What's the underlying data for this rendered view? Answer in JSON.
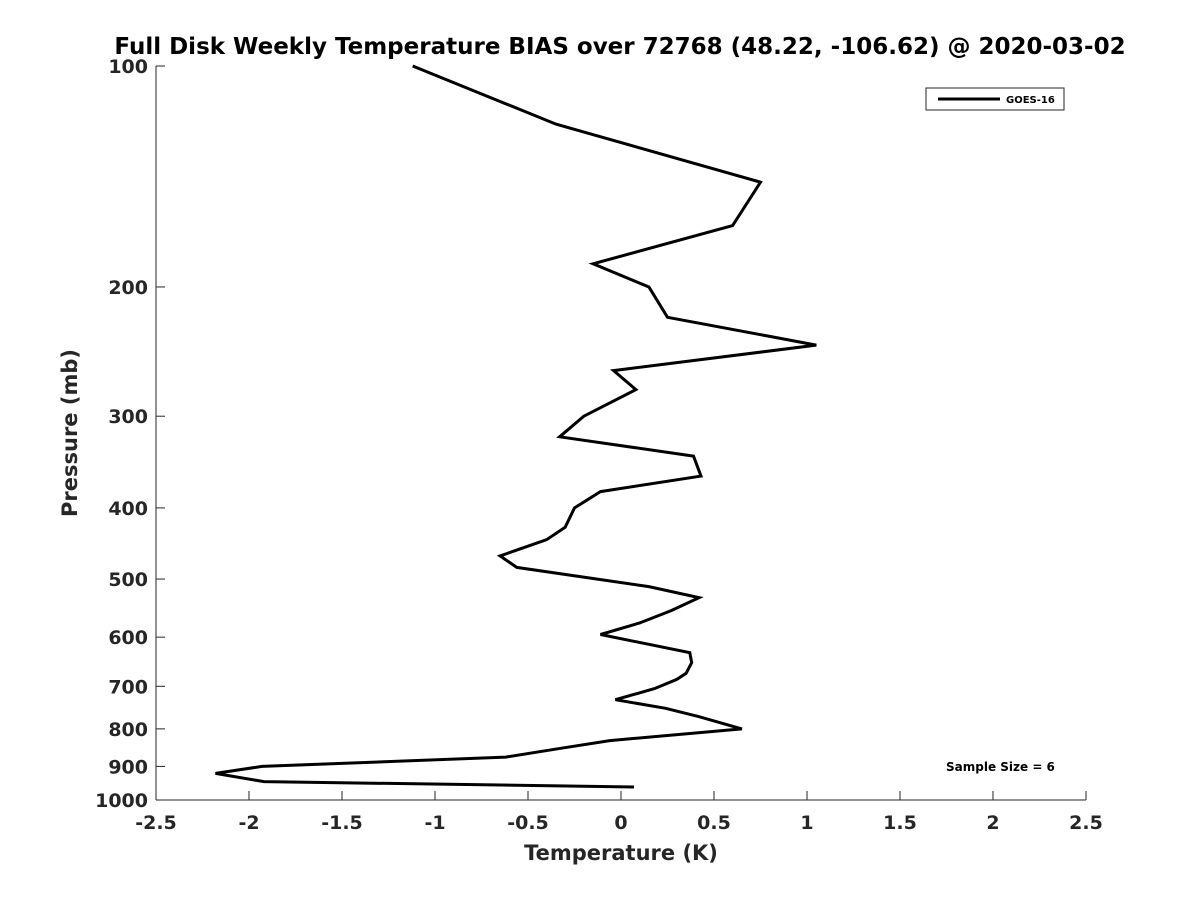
{
  "chart_data": {
    "type": "line",
    "title": "Full Disk Weekly Temperature BIAS over 72768 (48.22, -106.62) @ 2020-03-02",
    "xlabel": "Temperature (K)",
    "ylabel": "Pressure (mb)",
    "xlim": [
      -2.5,
      2.5
    ],
    "ylim": [
      100,
      1000
    ],
    "y_scale": "log",
    "y_reversed": true,
    "x_ticks": [
      "-2.5",
      "-2",
      "-1.5",
      "-1",
      "-0.5",
      "0",
      "0.5",
      "1",
      "1.5",
      "2",
      "2.5"
    ],
    "y_ticks": [
      "100",
      "200",
      "300",
      "400",
      "500",
      "600",
      "700",
      "800",
      "900",
      "1000"
    ],
    "grid": false,
    "legend_position": "top-right",
    "series": [
      {
        "name": "GOES-16",
        "color": "#000000",
        "x": [
          -1.12,
          -0.35,
          0.75,
          0.6,
          -0.15,
          0.15,
          0.25,
          1.05,
          -0.04,
          0.08,
          -0.2,
          -0.33,
          0.39,
          0.43,
          -0.11,
          -0.25,
          -0.3,
          -0.4,
          -0.65,
          -0.56,
          0.15,
          0.42,
          0.27,
          0.1,
          -0.11,
          0.37,
          0.38,
          0.35,
          0.3,
          0.18,
          -0.03,
          0.24,
          0.42,
          0.65,
          -0.06,
          -0.32,
          -0.62,
          -1.93,
          -2.18,
          -1.92,
          0.07
        ],
        "y": [
          100,
          120,
          144,
          165,
          186,
          200,
          220,
          240,
          260,
          276,
          300,
          320,
          340,
          362,
          380,
          400,
          425,
          442,
          465,
          482,
          512,
          530,
          552,
          574,
          595,
          630,
          650,
          672,
          685,
          705,
          730,
          750,
          770,
          800,
          830,
          850,
          874,
          900,
          920,
          944,
          960
        ]
      }
    ],
    "annotations": [
      "Sample Size = 6"
    ]
  }
}
